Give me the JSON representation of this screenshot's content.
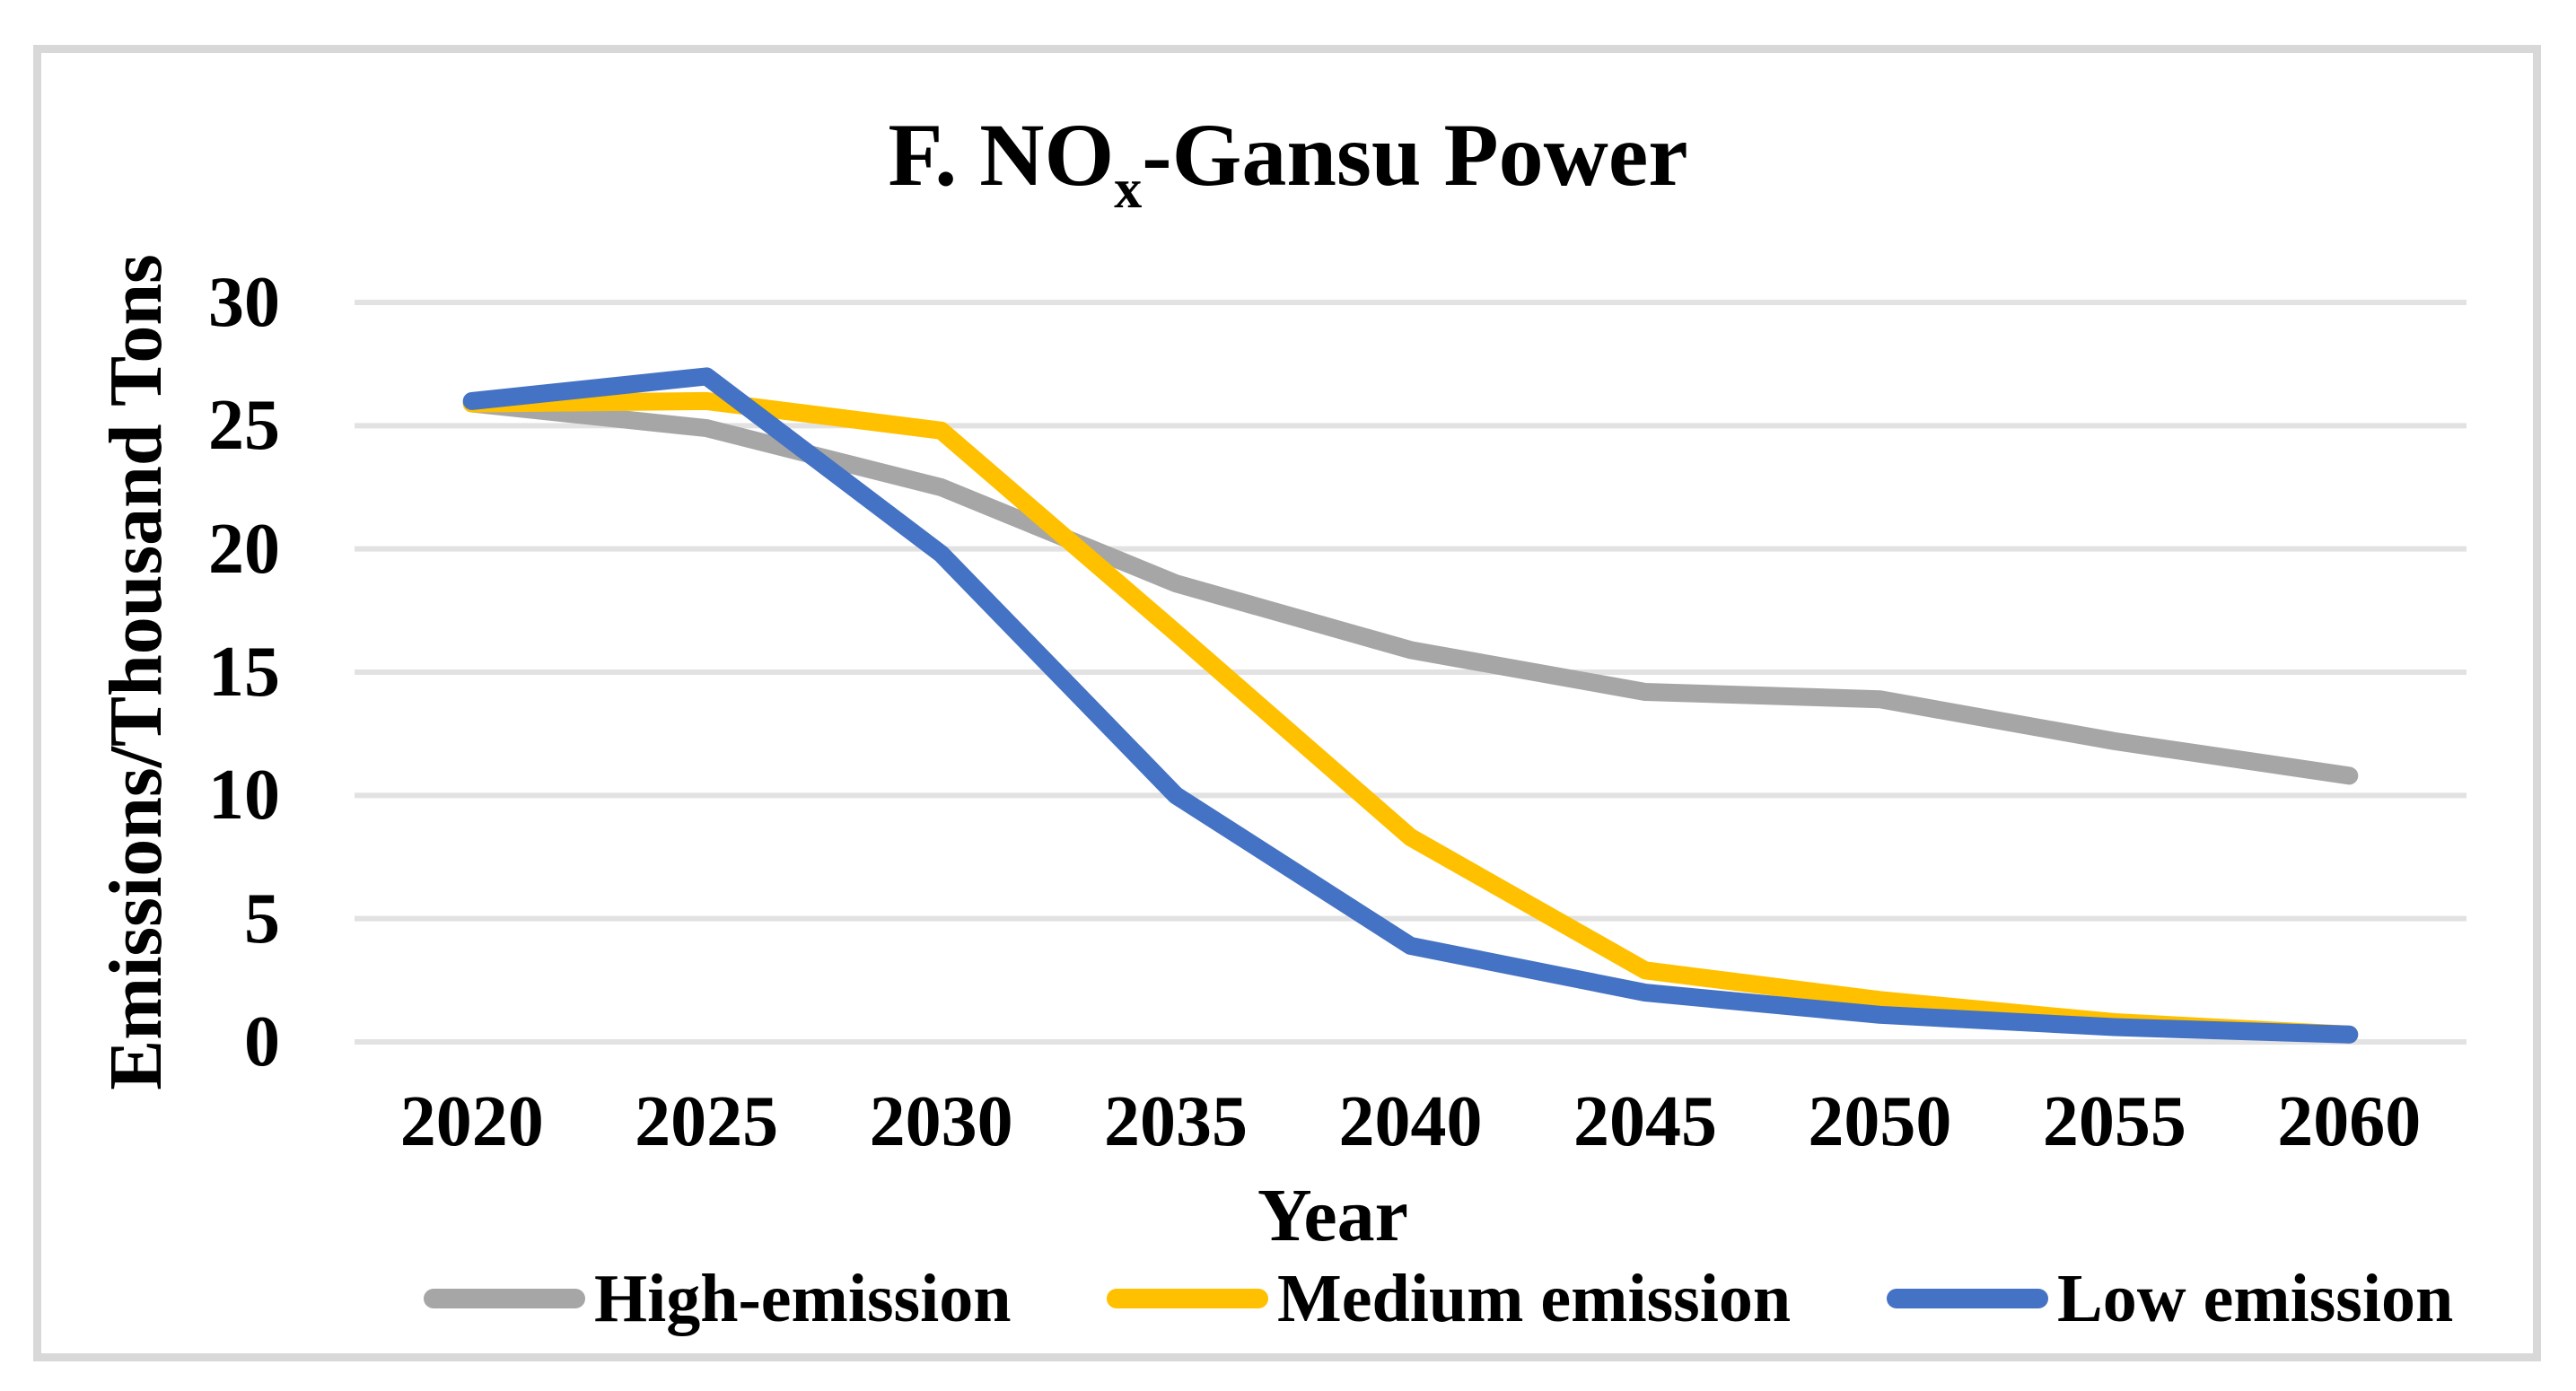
{
  "chart_data": {
    "type": "line",
    "title": "F. NOx-Gansu Power",
    "title_parts": {
      "prefix": "F. NO",
      "subscript": "x",
      "suffix": "-Gansu Power"
    },
    "xlabel": "Year",
    "ylabel": "Emissions/Thousand Tons",
    "categories": [
      "2020",
      "2025",
      "2030",
      "2035",
      "2040",
      "2045",
      "2050",
      "2055",
      "2060"
    ],
    "yticks": [
      30,
      25,
      20,
      15,
      10,
      5,
      0
    ],
    "ylim": [
      0,
      30
    ],
    "grid": true,
    "legend_position": "bottom",
    "series": [
      {
        "name": "High-emission",
        "color": "#A6A6A6",
        "values": [
          25.9,
          24.9,
          22.5,
          18.6,
          15.9,
          14.2,
          13.9,
          12.2,
          10.8
        ]
      },
      {
        "name": "Medium emission",
        "color": "#FFC000",
        "values": [
          25.9,
          26.0,
          24.8,
          16.6,
          8.3,
          2.9,
          1.7,
          0.8,
          0.3
        ]
      },
      {
        "name": "Low emission",
        "color": "#4472C4",
        "values": [
          26.0,
          27.0,
          19.8,
          10.0,
          3.9,
          2.0,
          1.1,
          0.6,
          0.3
        ]
      }
    ],
    "colors": {
      "gridline": "#E2E2E2",
      "frame_border": "#D8D8D8",
      "text": "#000000"
    }
  }
}
